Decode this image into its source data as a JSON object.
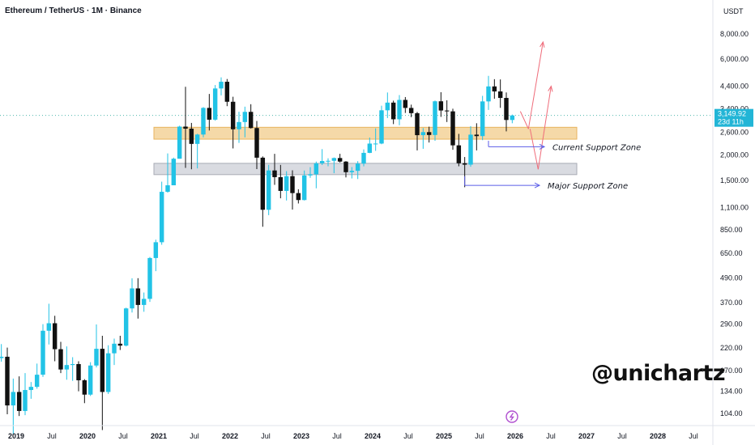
{
  "chart_data": {
    "type": "candlestick",
    "title": "Ethereum / TetherUS · 1M · Binance",
    "currency": "USDT",
    "watermark": "@unichartz",
    "y_scale": "log",
    "ylim": [
      92,
      10000
    ],
    "xlim": [
      "2018-10",
      "2028-12"
    ],
    "price_ticks": [
      "8,000.00",
      "6,000.00",
      "4,400.00",
      "3,400.00",
      "2,600.00",
      "2,000.00",
      "1,500.00",
      "1,100.00",
      "850.00",
      "650.00",
      "490.00",
      "370.00",
      "290.00",
      "220.00",
      "170.00",
      "134.00",
      "104.00"
    ],
    "time_ticks": [
      {
        "label": "2019",
        "date": "2019-01"
      },
      {
        "label": "Jul",
        "date": "2019-07"
      },
      {
        "label": "2020",
        "date": "2020-01"
      },
      {
        "label": "Jul",
        "date": "2020-07"
      },
      {
        "label": "2021",
        "date": "2021-01"
      },
      {
        "label": "Jul",
        "date": "2021-07"
      },
      {
        "label": "2022",
        "date": "2022-01"
      },
      {
        "label": "Jul",
        "date": "2022-07"
      },
      {
        "label": "2023",
        "date": "2023-01"
      },
      {
        "label": "Jul",
        "date": "2023-07"
      },
      {
        "label": "2024",
        "date": "2024-01"
      },
      {
        "label": "Jul",
        "date": "2024-07"
      },
      {
        "label": "2025",
        "date": "2025-01"
      },
      {
        "label": "Jul",
        "date": "2025-07"
      },
      {
        "label": "2026",
        "date": "2026-01"
      },
      {
        "label": "Jul",
        "date": "2026-07"
      },
      {
        "label": "2027",
        "date": "2027-01"
      },
      {
        "label": "Jul",
        "date": "2027-07"
      },
      {
        "label": "2028",
        "date": "2028-01"
      },
      {
        "label": "Jul",
        "date": "2028-07"
      }
    ],
    "last_price": {
      "value": 3149.92,
      "label": "3,149.92",
      "countdown": "23d 11h"
    },
    "zones": [
      {
        "name": "Current Support Zone",
        "low": 2400,
        "high": 2750,
        "from": "2021-05",
        "to": "2026-07",
        "color": "#f5d9a8",
        "border": "#e8b460"
      },
      {
        "name": "Major Support Zone",
        "low": 1600,
        "high": 1820,
        "from": "2021-05",
        "to": "2026-07",
        "color": "#d9dbe1",
        "border": "#a8abb5"
      }
    ],
    "annotations": [
      {
        "text": "Current Support Zone",
        "date": "2025-08",
        "price": 2200
      },
      {
        "text": "Major Support Zone",
        "date": "2025-04",
        "price": 1415
      }
    ],
    "colors": {
      "up": "#26a69a",
      "up_fill": "#22c3e6",
      "down": "#111111",
      "zone_label": "#131722",
      "arrow": "#ef6c7a",
      "pointer": "#5b5ee8"
    },
    "candles": [
      {
        "d": "2018-10",
        "o": 196,
        "h": 230,
        "l": 188,
        "c": 199
      },
      {
        "d": "2018-11",
        "o": 199,
        "h": 221,
        "l": 103,
        "c": 114
      },
      {
        "d": "2018-12",
        "o": 114,
        "h": 155,
        "l": 82,
        "c": 133
      },
      {
        "d": "2019-01",
        "o": 133,
        "h": 159,
        "l": 101,
        "c": 107
      },
      {
        "d": "2019-02",
        "o": 107,
        "h": 165,
        "l": 102,
        "c": 136
      },
      {
        "d": "2019-03",
        "o": 136,
        "h": 149,
        "l": 123,
        "c": 141
      },
      {
        "d": "2019-04",
        "o": 141,
        "h": 184,
        "l": 138,
        "c": 162
      },
      {
        "d": "2019-05",
        "o": 162,
        "h": 289,
        "l": 158,
        "c": 268
      },
      {
        "d": "2019-06",
        "o": 268,
        "h": 365,
        "l": 229,
        "c": 292
      },
      {
        "d": "2019-07",
        "o": 292,
        "h": 318,
        "l": 189,
        "c": 217
      },
      {
        "d": "2019-08",
        "o": 217,
        "h": 236,
        "l": 165,
        "c": 172
      },
      {
        "d": "2019-09",
        "o": 172,
        "h": 224,
        "l": 153,
        "c": 181
      },
      {
        "d": "2019-10",
        "o": 181,
        "h": 198,
        "l": 151,
        "c": 183
      },
      {
        "d": "2019-11",
        "o": 183,
        "h": 189,
        "l": 134,
        "c": 152
      },
      {
        "d": "2019-12",
        "o": 152,
        "h": 154,
        "l": 117,
        "c": 129
      },
      {
        "d": "2020-01",
        "o": 129,
        "h": 187,
        "l": 127,
        "c": 180
      },
      {
        "d": "2020-02",
        "o": 180,
        "h": 288,
        "l": 176,
        "c": 218
      },
      {
        "d": "2020-03",
        "o": 218,
        "h": 253,
        "l": 86,
        "c": 133
      },
      {
        "d": "2020-04",
        "o": 133,
        "h": 227,
        "l": 130,
        "c": 207
      },
      {
        "d": "2020-05",
        "o": 207,
        "h": 245,
        "l": 181,
        "c": 231
      },
      {
        "d": "2020-06",
        "o": 231,
        "h": 253,
        "l": 215,
        "c": 226
      },
      {
        "d": "2020-07",
        "o": 226,
        "h": 349,
        "l": 224,
        "c": 346
      },
      {
        "d": "2020-08",
        "o": 346,
        "h": 488,
        "l": 330,
        "c": 435
      },
      {
        "d": "2020-09",
        "o": 435,
        "h": 489,
        "l": 308,
        "c": 360
      },
      {
        "d": "2020-10",
        "o": 360,
        "h": 415,
        "l": 333,
        "c": 386
      },
      {
        "d": "2020-11",
        "o": 386,
        "h": 623,
        "l": 373,
        "c": 616
      },
      {
        "d": "2020-12",
        "o": 616,
        "h": 760,
        "l": 530,
        "c": 738
      },
      {
        "d": "2021-01",
        "o": 738,
        "h": 1476,
        "l": 717,
        "c": 1314
      },
      {
        "d": "2021-02",
        "o": 1314,
        "h": 2040,
        "l": 1301,
        "c": 1416
      },
      {
        "d": "2021-03",
        "o": 1416,
        "h": 1943,
        "l": 1418,
        "c": 1919
      },
      {
        "d": "2021-04",
        "o": 1919,
        "h": 2800,
        "l": 1920,
        "c": 2772
      },
      {
        "d": "2021-05",
        "o": 2772,
        "h": 4372,
        "l": 1728,
        "c": 2707
      },
      {
        "d": "2021-06",
        "o": 2707,
        "h": 2891,
        "l": 1701,
        "c": 2274
      },
      {
        "d": "2021-07",
        "o": 2274,
        "h": 2552,
        "l": 1718,
        "c": 2531
      },
      {
        "d": "2021-08",
        "o": 2531,
        "h": 3466,
        "l": 2450,
        "c": 3433
      },
      {
        "d": "2021-09",
        "o": 3433,
        "h": 4027,
        "l": 2651,
        "c": 3000
      },
      {
        "d": "2021-10",
        "o": 3000,
        "h": 4460,
        "l": 2965,
        "c": 4288
      },
      {
        "d": "2021-11",
        "o": 4288,
        "h": 4868,
        "l": 3964,
        "c": 4630
      },
      {
        "d": "2021-12",
        "o": 4630,
        "h": 4778,
        "l": 3502,
        "c": 3683
      },
      {
        "d": "2022-01",
        "o": 3683,
        "h": 3900,
        "l": 2159,
        "c": 2688
      },
      {
        "d": "2022-02",
        "o": 2688,
        "h": 3286,
        "l": 2300,
        "c": 2920
      },
      {
        "d": "2022-03",
        "o": 2920,
        "h": 3482,
        "l": 2451,
        "c": 3281
      },
      {
        "d": "2022-04",
        "o": 3281,
        "h": 3581,
        "l": 2711,
        "c": 2727
      },
      {
        "d": "2022-05",
        "o": 2727,
        "h": 2955,
        "l": 1704,
        "c": 1942
      },
      {
        "d": "2022-06",
        "o": 1942,
        "h": 1970,
        "l": 881,
        "c": 1070
      },
      {
        "d": "2022-07",
        "o": 1070,
        "h": 1789,
        "l": 1006,
        "c": 1678
      },
      {
        "d": "2022-08",
        "o": 1678,
        "h": 2030,
        "l": 1422,
        "c": 1554
      },
      {
        "d": "2022-09",
        "o": 1554,
        "h": 1788,
        "l": 1220,
        "c": 1328
      },
      {
        "d": "2022-10",
        "o": 1328,
        "h": 1664,
        "l": 1190,
        "c": 1572
      },
      {
        "d": "2022-11",
        "o": 1572,
        "h": 1680,
        "l": 1073,
        "c": 1295
      },
      {
        "d": "2022-12",
        "o": 1295,
        "h": 1352,
        "l": 1150,
        "c": 1196
      },
      {
        "d": "2023-01",
        "o": 1196,
        "h": 1677,
        "l": 1190,
        "c": 1585
      },
      {
        "d": "2023-02",
        "o": 1585,
        "h": 1743,
        "l": 1543,
        "c": 1605
      },
      {
        "d": "2023-03",
        "o": 1605,
        "h": 1857,
        "l": 1368,
        "c": 1821
      },
      {
        "d": "2023-04",
        "o": 1821,
        "h": 2142,
        "l": 1785,
        "c": 1869
      },
      {
        "d": "2023-05",
        "o": 1869,
        "h": 1929,
        "l": 1761,
        "c": 1874
      },
      {
        "d": "2023-06",
        "o": 1874,
        "h": 1946,
        "l": 1626,
        "c": 1934
      },
      {
        "d": "2023-07",
        "o": 1934,
        "h": 2030,
        "l": 1838,
        "c": 1857
      },
      {
        "d": "2023-08",
        "o": 1857,
        "h": 1868,
        "l": 1550,
        "c": 1645
      },
      {
        "d": "2023-09",
        "o": 1645,
        "h": 1744,
        "l": 1531,
        "c": 1671
      },
      {
        "d": "2023-10",
        "o": 1671,
        "h": 1866,
        "l": 1521,
        "c": 1815
      },
      {
        "d": "2023-11",
        "o": 1815,
        "h": 2136,
        "l": 1759,
        "c": 2052
      },
      {
        "d": "2023-12",
        "o": 2052,
        "h": 2445,
        "l": 2045,
        "c": 2282
      },
      {
        "d": "2024-01",
        "o": 2282,
        "h": 2717,
        "l": 2100,
        "c": 2283
      },
      {
        "d": "2024-02",
        "o": 2283,
        "h": 3522,
        "l": 2266,
        "c": 3340
      },
      {
        "d": "2024-03",
        "o": 3340,
        "h": 4095,
        "l": 3056,
        "c": 3647
      },
      {
        "d": "2024-04",
        "o": 3647,
        "h": 3730,
        "l": 2852,
        "c": 3014
      },
      {
        "d": "2024-05",
        "o": 3014,
        "h": 3977,
        "l": 2817,
        "c": 3762
      },
      {
        "d": "2024-06",
        "o": 3762,
        "h": 3887,
        "l": 3240,
        "c": 3432
      },
      {
        "d": "2024-07",
        "o": 3432,
        "h": 3563,
        "l": 3087,
        "c": 3232
      },
      {
        "d": "2024-08",
        "o": 3232,
        "h": 3279,
        "l": 2111,
        "c": 2513
      },
      {
        "d": "2024-09",
        "o": 2513,
        "h": 2727,
        "l": 2150,
        "c": 2602
      },
      {
        "d": "2024-10",
        "o": 2602,
        "h": 2769,
        "l": 2310,
        "c": 2518
      },
      {
        "d": "2024-11",
        "o": 2518,
        "h": 3737,
        "l": 2357,
        "c": 3703
      },
      {
        "d": "2024-12",
        "o": 3703,
        "h": 4109,
        "l": 3098,
        "c": 3332
      },
      {
        "d": "2025-01",
        "o": 3332,
        "h": 3745,
        "l": 2921,
        "c": 3300
      },
      {
        "d": "2025-02",
        "o": 3300,
        "h": 3400,
        "l": 2125,
        "c": 2237
      },
      {
        "d": "2025-03",
        "o": 2237,
        "h": 2550,
        "l": 1760,
        "c": 1822
      },
      {
        "d": "2025-04",
        "o": 1822,
        "h": 1957,
        "l": 1385,
        "c": 1793
      },
      {
        "d": "2025-05",
        "o": 1793,
        "h": 2788,
        "l": 1751,
        "c": 2528
      },
      {
        "d": "2025-06",
        "o": 2528,
        "h": 2880,
        "l": 2111,
        "c": 2486
      },
      {
        "d": "2025-07",
        "o": 2486,
        "h": 3941,
        "l": 2373,
        "c": 3698
      },
      {
        "d": "2025-08",
        "o": 3698,
        "h": 4956,
        "l": 3354,
        "c": 4390
      },
      {
        "d": "2025-09",
        "o": 4390,
        "h": 4769,
        "l": 3813,
        "c": 4145
      },
      {
        "d": "2025-10",
        "o": 4145,
        "h": 4755,
        "l": 3435,
        "c": 3848
      },
      {
        "d": "2025-11",
        "o": 3848,
        "h": 4100,
        "l": 2623,
        "c": 2990
      },
      {
        "d": "2025-12",
        "o": 2990,
        "h": 3180,
        "l": 2880,
        "c": 3149.92
      }
    ]
  }
}
